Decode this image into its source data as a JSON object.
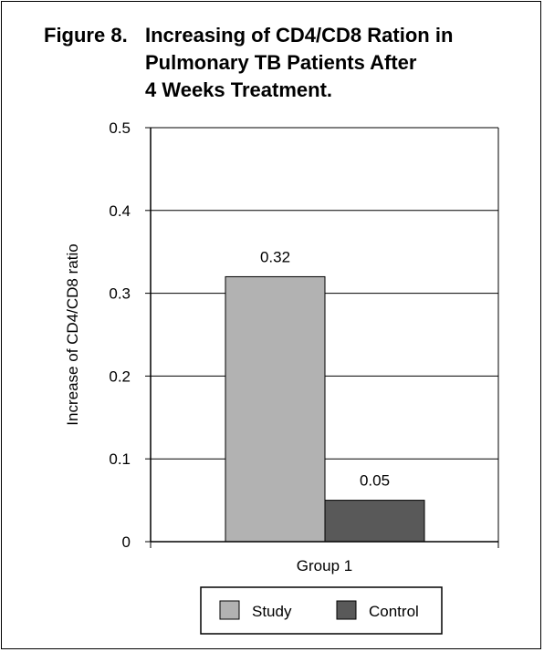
{
  "figure": {
    "label": "Figure 8.",
    "title_lines": [
      "Increasing of CD4/CD8 Ration in",
      "Pulmonary TB Patients After",
      "4 Weeks Treatment."
    ]
  },
  "chart_data": {
    "type": "bar",
    "title": "Figure 8. Increasing of CD4/CD8 Ration in Pulmonary TB Patients After 4 Weeks Treatment.",
    "xlabel": "",
    "ylabel": "Increase of CD4/CD8 ratio",
    "categories": [
      "Group 1"
    ],
    "series": [
      {
        "name": "Study",
        "values": [
          0.32
        ],
        "color": "#b2b2b2",
        "label": "0.32"
      },
      {
        "name": "Control",
        "values": [
          0.05
        ],
        "color": "#595959",
        "label": "0.05"
      }
    ],
    "ylim": [
      0,
      0.5
    ],
    "yticks": [
      0,
      0.1,
      0.2,
      0.3,
      0.4,
      0.5
    ],
    "ytick_labels": [
      "0",
      "0.1",
      "0.2",
      "0.3",
      "0.4",
      "0.5"
    ],
    "grid": true,
    "legend": {
      "position": "bottom",
      "entries": [
        "Study",
        "Control"
      ]
    }
  }
}
